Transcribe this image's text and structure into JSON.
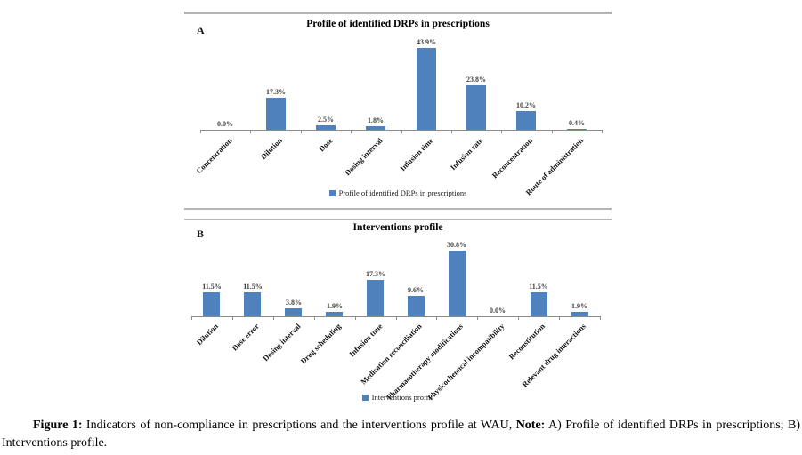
{
  "page": {
    "background": "#ffffff"
  },
  "chart_data": [
    {
      "type": "bar",
      "panel_label": "A",
      "title": "Profile of identified DRPs in prescriptions",
      "categories": [
        "Concentration",
        "Dilution",
        "Dose",
        "Dosing interval",
        "Infusion time",
        "Infusion rate",
        "Reconcentration",
        "Route of administration"
      ],
      "values": [
        0.0,
        17.3,
        2.5,
        1.8,
        43.9,
        23.8,
        10.2,
        0.4
      ],
      "value_labels": [
        "0.0%",
        "17.3%",
        "2.5%",
        "1.8%",
        "43.9%",
        "23.8%",
        "10.2%",
        "0.4%"
      ],
      "legend": [
        "Profile of identified DRPs in prescriptions"
      ],
      "legend_position": "bottom",
      "xlabel": "",
      "ylabel": "",
      "ylim": [
        0,
        45
      ],
      "grid": false,
      "bar_color": "#4f81bd"
    },
    {
      "type": "bar",
      "panel_label": "B",
      "title": "Interventions profile",
      "categories": [
        "Dilution",
        "Dose error",
        "Dosing interval",
        "Drug scheduling",
        "Infusion time",
        "Medication reconciliation",
        "Pharmacotherapy modifications",
        "Physicochemical incompatibility",
        "Reconstitution",
        "Relevant drug interactions"
      ],
      "values": [
        11.5,
        11.5,
        3.8,
        1.9,
        17.3,
        9.6,
        30.8,
        0.0,
        11.5,
        1.9
      ],
      "value_labels": [
        "11.5%",
        "11.5%",
        "3.8%",
        "1.9%",
        "17.3%",
        "9.6%",
        "30.8%",
        "0.0%",
        "11.5%",
        "1.9%"
      ],
      "legend": [
        "Interventions profile"
      ],
      "legend_position": "bottom",
      "xlabel": "",
      "ylabel": "",
      "ylim": [
        0,
        31
      ],
      "grid": false,
      "bar_color": "#4f81bd"
    }
  ],
  "caption": {
    "segments": [
      {
        "text": "Figure 1:",
        "bold": true
      },
      {
        "text": " Indicators of non-compliance in prescriptions and the interventions profile at WAU, ",
        "bold": false
      },
      {
        "text": "Note:",
        "bold": true
      },
      {
        "text": " A) Profile of identified DRPs in prescriptions; B) Interventions profile.",
        "bold": false
      }
    ]
  }
}
